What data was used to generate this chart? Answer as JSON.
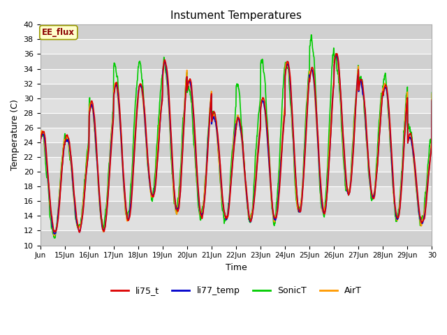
{
  "title": "Instument Temperatures",
  "xlabel": "Time",
  "ylabel": "Temperature (C)",
  "ylim": [
    10,
    40
  ],
  "xlim": [
    0,
    16
  ],
  "annotation": "EE_flux",
  "plot_bg_color": "#e0e0e0",
  "stripe_colors": [
    "#d0d0d0",
    "#e0e0e0"
  ],
  "series": {
    "li75_t": {
      "color": "#dd0000",
      "lw": 1.2
    },
    "li77_temp": {
      "color": "#0000cc",
      "lw": 1.2
    },
    "SonicT": {
      "color": "#00cc00",
      "lw": 1.2
    },
    "AirT": {
      "color": "#ff9900",
      "lw": 1.2
    }
  },
  "xtick_labels": [
    "Jun",
    "15Jun",
    "16Jun",
    "17Jun",
    "18Jun",
    "19Jun",
    "20Jun",
    "21Jun",
    "22Jun",
    "23Jun",
    "24Jun",
    "25Jun",
    "26Jun",
    "27Jun",
    "28Jun",
    "29Jun",
    "30"
  ],
  "xtick_positions": [
    0,
    1,
    2,
    3,
    4,
    5,
    6,
    7,
    8,
    9,
    10,
    11,
    12,
    13,
    14,
    15,
    16
  ],
  "ytick_start": 10,
  "ytick_end": 41,
  "ytick_step": 2
}
